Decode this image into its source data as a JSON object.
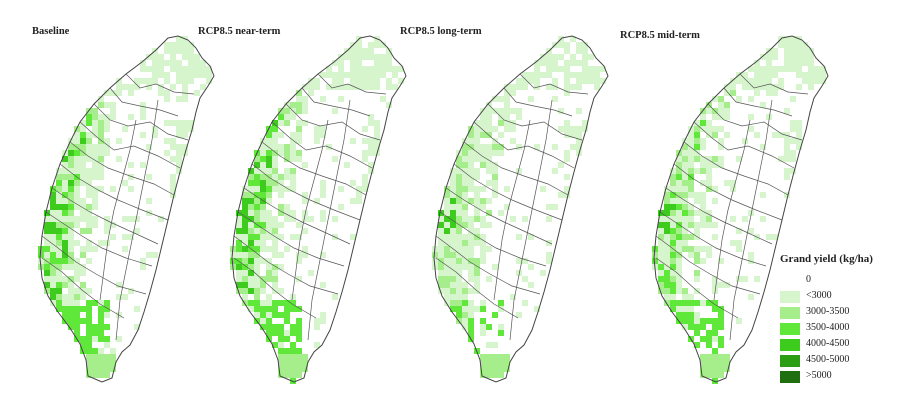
{
  "panels": [
    {
      "title": "Baseline",
      "intensity": 1.0
    },
    {
      "title": "RCP8.5 near-term",
      "intensity": 1.1
    },
    {
      "title": "RCP8.5 long-term",
      "intensity": 0.55
    },
    {
      "title": "RCP8.5 mid-term",
      "intensity": 0.85
    }
  ],
  "legend": {
    "title": "Grand yield (kg/ha)",
    "classes": [
      {
        "label": "0",
        "color": "#ffffff"
      },
      {
        "label": "<3000",
        "color": "#d6f5cc"
      },
      {
        "label": "3000-3500",
        "color": "#a6ee8c"
      },
      {
        "label": "3500-4000",
        "color": "#5fe83a"
      },
      {
        "label": "4000-4500",
        "color": "#3dcc1e"
      },
      {
        "label": "4500-5000",
        "color": "#2b9e14"
      },
      {
        "label": ">5000",
        "color": "#1f6e10"
      }
    ]
  }
}
